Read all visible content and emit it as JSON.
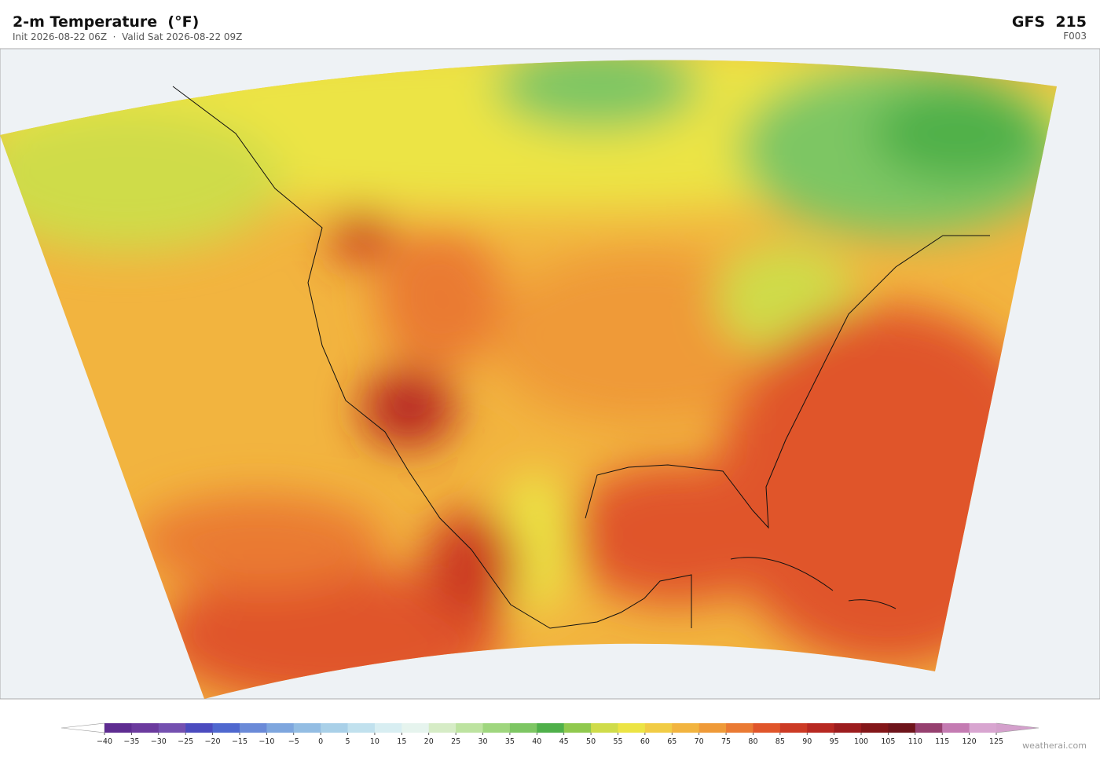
{
  "header": {
    "title": "2-m Temperature  (°F)",
    "subtitle": "Init 2026-08-22 06Z  ·  Valid Sat 2026-08-22 09Z",
    "model": "GFS  215",
    "forecast_hour": "F003"
  },
  "colorbar": {
    "ticks": [
      {
        "value": -40,
        "label": "−40"
      },
      {
        "value": -35,
        "label": "−35"
      },
      {
        "value": -30,
        "label": "−30"
      },
      {
        "value": -25,
        "label": "−25"
      },
      {
        "value": -20,
        "label": "−20"
      },
      {
        "value": -15,
        "label": "−15"
      },
      {
        "value": -10,
        "label": "−10"
      },
      {
        "value": -5,
        "label": "−5"
      },
      0,
      5,
      10,
      15,
      20,
      25,
      30,
      35,
      40,
      45,
      50,
      55,
      60,
      65,
      70,
      75,
      80,
      85,
      90,
      95,
      100,
      105,
      110,
      115,
      120,
      125
    ],
    "colors": [
      "#5e2c91",
      "#6b3a9e",
      "#7450b0",
      "#4b4bbf",
      "#4f68cf",
      "#6a8ad8",
      "#7ea6de",
      "#93bde3",
      "#a9d0e8",
      "#c1e1ee",
      "#d8eef2",
      "#e6f4ee",
      "#d6ecc6",
      "#bde3a0",
      "#9fd67e",
      "#7dc663",
      "#4fb04a",
      "#90c94e",
      "#cfdc4a",
      "#ece444",
      "#f1cc45",
      "#f2b43f",
      "#ef9a38",
      "#ea7a33",
      "#e0552a",
      "#cc3a24",
      "#b72821",
      "#9c1c1e",
      "#831619",
      "#6e141b",
      "#96406f",
      "#c47bb2",
      "#d8a5d0"
    ],
    "under_color": "#ffffff",
    "over_color": "#d4a0cc"
  },
  "footer": {
    "credit": "weatherai.com"
  }
}
